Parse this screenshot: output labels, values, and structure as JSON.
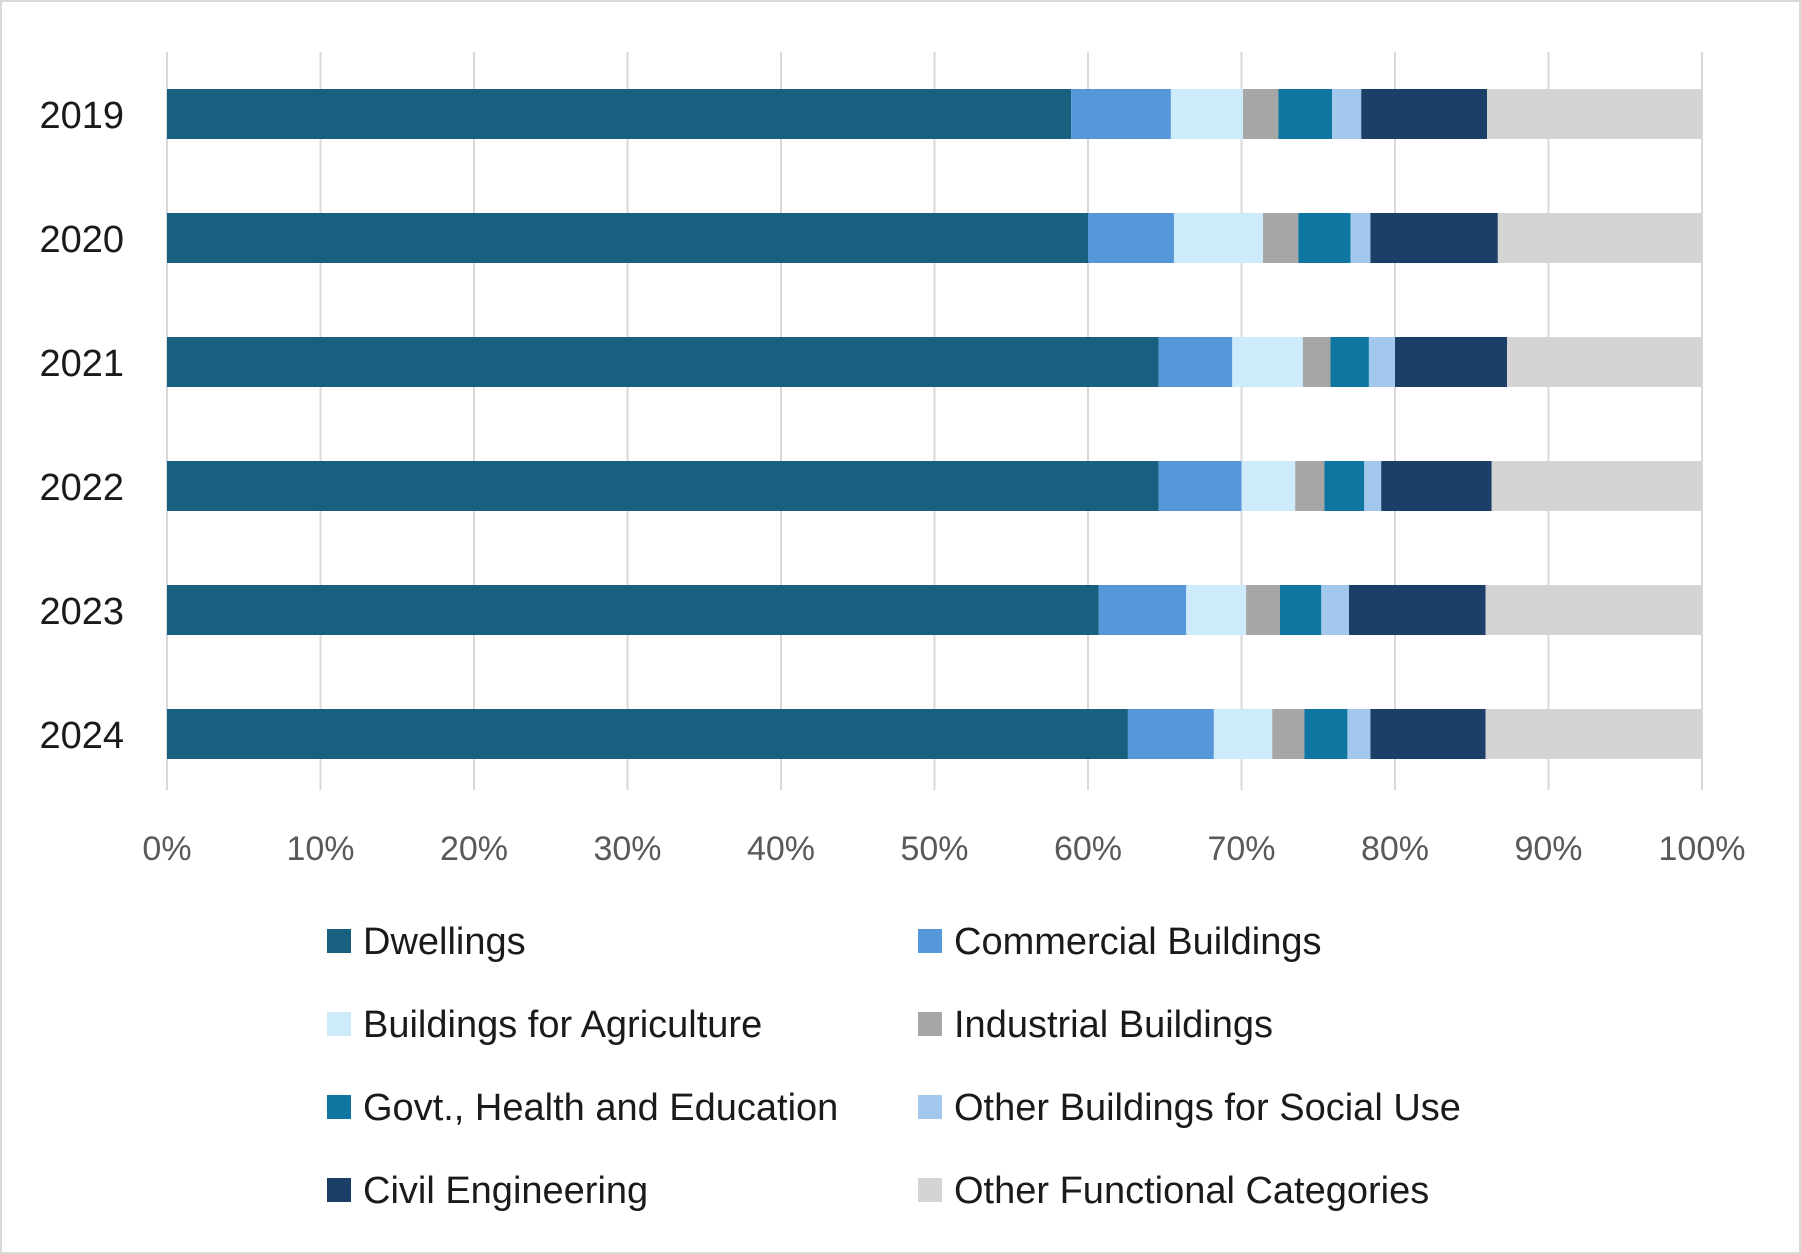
{
  "chart_data": {
    "type": "bar",
    "orientation": "horizontal",
    "stacked": "percent",
    "title": "",
    "xlabel": "",
    "ylabel": "",
    "xlim": [
      0,
      100
    ],
    "x_ticks": [
      "0%",
      "10%",
      "20%",
      "30%",
      "40%",
      "50%",
      "60%",
      "70%",
      "80%",
      "90%",
      "100%"
    ],
    "grid": "vertical",
    "legend_position": "bottom",
    "categories": [
      "2019",
      "2020",
      "2021",
      "2022",
      "2023",
      "2024"
    ],
    "series": [
      {
        "name": "Dwellings",
        "color": "#17607f",
        "values": [
          58.9,
          60.0,
          64.6,
          64.6,
          60.7,
          62.6
        ]
      },
      {
        "name": "Commercial Buildings",
        "color": "#5597d8",
        "values": [
          6.5,
          5.6,
          4.8,
          5.4,
          5.7,
          5.6
        ]
      },
      {
        "name": "Buildings for Agriculture",
        "color": "#cdebfa",
        "values": [
          4.7,
          5.8,
          4.6,
          3.5,
          3.9,
          3.8
        ]
      },
      {
        "name": "Industrial Buildings",
        "color": "#a6a6a6",
        "values": [
          2.3,
          2.3,
          1.8,
          1.9,
          2.2,
          2.1
        ]
      },
      {
        "name": "Govt., Health and Education",
        "color": "#0e76a0",
        "values": [
          3.5,
          3.4,
          2.5,
          2.6,
          2.7,
          2.8
        ]
      },
      {
        "name": "Other Buildings for Social Use",
        "color": "#a3c8ed",
        "values": [
          1.9,
          1.3,
          1.7,
          1.1,
          1.8,
          1.5
        ]
      },
      {
        "name": "Civil Engineering",
        "color": "#1b3f66",
        "values": [
          8.2,
          8.3,
          7.3,
          7.2,
          8.9,
          7.5
        ]
      },
      {
        "name": "Other Functional Categories",
        "color": "#d4d4d4",
        "values": [
          14.0,
          13.3,
          12.7,
          13.7,
          14.1,
          14.1
        ]
      }
    ]
  }
}
